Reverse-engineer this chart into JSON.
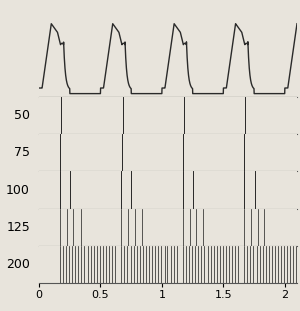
{
  "xlim": [
    0,
    2.1
  ],
  "xticks": [
    0,
    0.5,
    1.0,
    1.5,
    2.0
  ],
  "pressure_labels": [
    "50",
    "75",
    "100",
    "125",
    "200"
  ],
  "label_fontsize": 9,
  "bg_color": "#e8e4dc",
  "spike_color": "#1a1a1a",
  "wave_color": "#2a2a2a",
  "period": 0.5,
  "total_time": 2.1,
  "spike_rate_list": [
    1.0,
    5,
    12,
    18,
    40
  ],
  "burst_durs": [
    0.003,
    0.07,
    0.13,
    0.2,
    0.46
  ]
}
